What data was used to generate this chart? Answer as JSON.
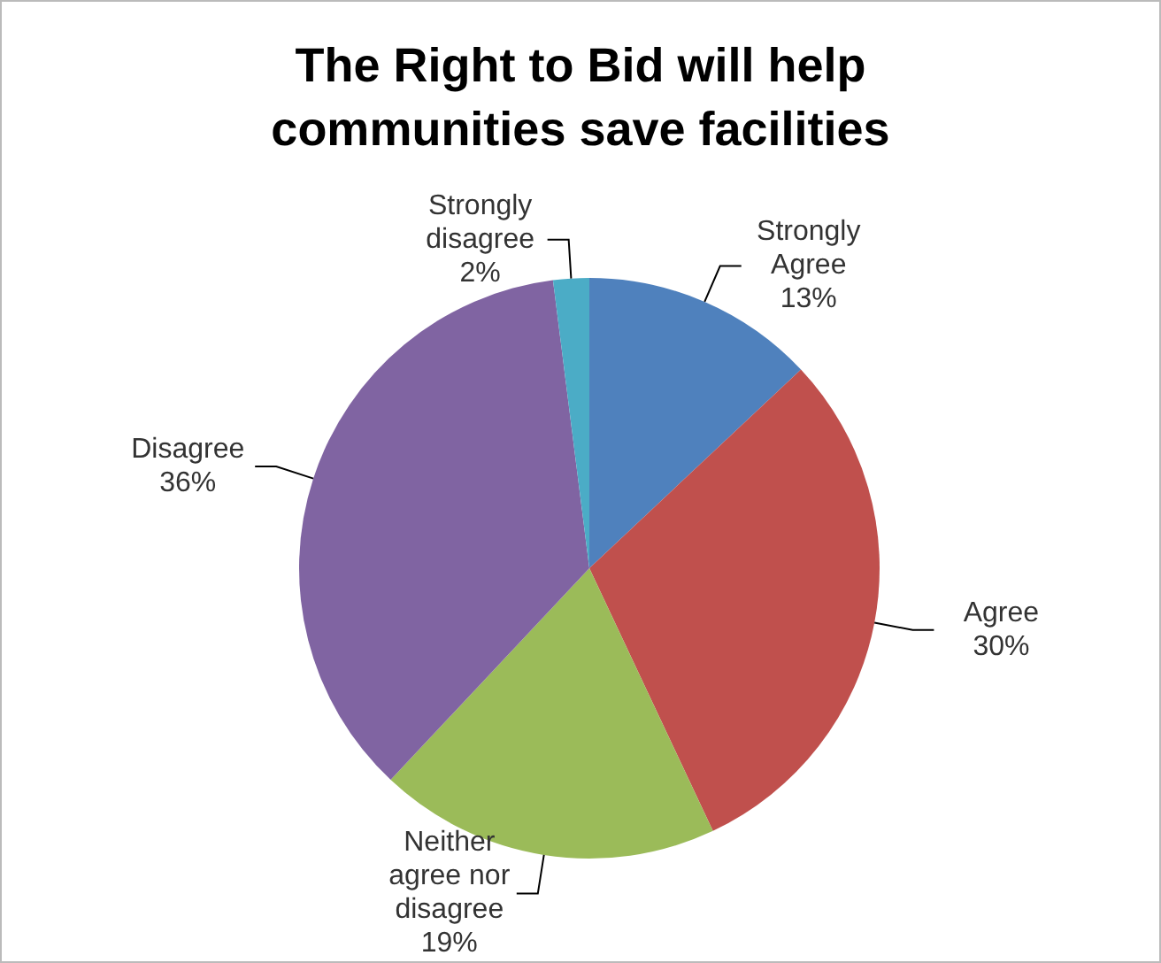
{
  "chart_data": {
    "type": "pie",
    "title": "The Right to Bid will help communities save facilities",
    "categories": [
      "Strongly Agree",
      "Agree",
      "Neither agree nor disagree",
      "Disagree",
      "Strongly disagree"
    ],
    "values": [
      13,
      30,
      19,
      36,
      2
    ],
    "value_labels": [
      "13%",
      "30%",
      "19%",
      "36%",
      "2%"
    ],
    "colors": [
      "#4f81bd",
      "#c0504d",
      "#9bbb59",
      "#8064a2",
      "#4bacc6"
    ],
    "legend": false
  }
}
